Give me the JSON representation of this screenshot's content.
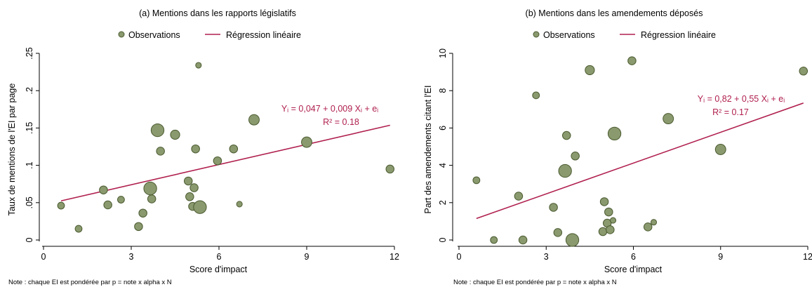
{
  "chart_data": [
    {
      "type": "scatter",
      "title": "(a) Mentions dans les rapports législatifs",
      "xlabel": "Score d'impact",
      "ylabel": "Taux de mentions de l'EI par page",
      "xlim": [
        0,
        12
      ],
      "ylim": [
        0,
        0.25
      ],
      "xticks": [
        0,
        3,
        6,
        9,
        12
      ],
      "xtick_labels": [
        "0",
        "3",
        "6",
        "9",
        "12"
      ],
      "yticks": [
        0,
        0.05,
        0.1,
        0.15,
        0.2,
        0.25
      ],
      "ytick_labels": [
        "0",
        ".05",
        ".1",
        ".15",
        ".2",
        ".25"
      ],
      "legend_position": "top-center",
      "legend": {
        "observations": "Observations",
        "regression": "Régression linéaire"
      },
      "equation": "Yᵢ = 0,047 + 0,009 Xᵢ + eᵢ",
      "r2": "R² = 0.18",
      "note": "Note : chaque EI est pondérée par p = note x alpha x N",
      "grid": false,
      "regression": {
        "intercept": 0.047,
        "slope": 0.009,
        "x_range": [
          0.6,
          11.85
        ]
      },
      "points": [
        {
          "x": 0.6,
          "y": 0.046,
          "w": 2
        },
        {
          "x": 1.2,
          "y": 0.015,
          "w": 2
        },
        {
          "x": 2.05,
          "y": 0.067,
          "w": 3
        },
        {
          "x": 2.2,
          "y": 0.047,
          "w": 3
        },
        {
          "x": 2.65,
          "y": 0.054,
          "w": 2
        },
        {
          "x": 3.25,
          "y": 0.018,
          "w": 3
        },
        {
          "x": 3.4,
          "y": 0.036,
          "w": 3
        },
        {
          "x": 3.65,
          "y": 0.069,
          "w": 7
        },
        {
          "x": 3.7,
          "y": 0.055,
          "w": 3
        },
        {
          "x": 3.9,
          "y": 0.147,
          "w": 7
        },
        {
          "x": 4.0,
          "y": 0.119,
          "w": 3
        },
        {
          "x": 4.5,
          "y": 0.141,
          "w": 4
        },
        {
          "x": 4.95,
          "y": 0.079,
          "w": 3
        },
        {
          "x": 5.0,
          "y": 0.058,
          "w": 3
        },
        {
          "x": 5.1,
          "y": 0.045,
          "w": 3
        },
        {
          "x": 5.15,
          "y": 0.07,
          "w": 3
        },
        {
          "x": 5.2,
          "y": 0.122,
          "w": 3
        },
        {
          "x": 5.3,
          "y": 0.234,
          "w": 1
        },
        {
          "x": 5.35,
          "y": 0.044,
          "w": 7
        },
        {
          "x": 5.95,
          "y": 0.106,
          "w": 3
        },
        {
          "x": 6.5,
          "y": 0.122,
          "w": 3
        },
        {
          "x": 6.7,
          "y": 0.048,
          "w": 1
        },
        {
          "x": 7.2,
          "y": 0.161,
          "w": 5
        },
        {
          "x": 9.0,
          "y": 0.131,
          "w": 5
        },
        {
          "x": 11.85,
          "y": 0.095,
          "w": 3
        }
      ]
    },
    {
      "type": "scatter",
      "title": "(b) Mentions dans les amendements déposés",
      "xlabel": "Score d'impact",
      "ylabel": "Part des amendements citant l'EI",
      "xlim": [
        0,
        12
      ],
      "ylim": [
        0,
        10
      ],
      "xticks": [
        0,
        3,
        6,
        9,
        12
      ],
      "xtick_labels": [
        "0",
        "3",
        "6",
        "9",
        "12"
      ],
      "yticks": [
        0,
        2,
        4,
        6,
        8,
        10
      ],
      "ytick_labels": [
        "0",
        "2",
        "4",
        "6",
        "8",
        "10"
      ],
      "legend_position": "top-center",
      "legend": {
        "observations": "Observations",
        "regression": "Régression linéaire"
      },
      "equation": "Yᵢ = 0,82 + 0,55 Xᵢ + eᵢ",
      "r2": "R² = 0.17",
      "note": "Note : chaque EI est pondérée par p = note x alpha x N",
      "grid": false,
      "regression": {
        "intercept": 0.82,
        "slope": 0.55,
        "x_range": [
          0.6,
          11.85
        ]
      },
      "points": [
        {
          "x": 0.6,
          "y": 3.2,
          "w": 2
        },
        {
          "x": 1.2,
          "y": 0.0,
          "w": 2
        },
        {
          "x": 2.05,
          "y": 2.35,
          "w": 3
        },
        {
          "x": 2.2,
          "y": 0.0,
          "w": 3
        },
        {
          "x": 2.65,
          "y": 7.75,
          "w": 2
        },
        {
          "x": 3.25,
          "y": 1.75,
          "w": 3
        },
        {
          "x": 3.4,
          "y": 0.4,
          "w": 3
        },
        {
          "x": 3.65,
          "y": 3.7,
          "w": 7
        },
        {
          "x": 3.7,
          "y": 5.6,
          "w": 3
        },
        {
          "x": 3.9,
          "y": 0.0,
          "w": 7
        },
        {
          "x": 4.0,
          "y": 4.5,
          "w": 3
        },
        {
          "x": 4.5,
          "y": 9.1,
          "w": 4
        },
        {
          "x": 4.95,
          "y": 0.45,
          "w": 3
        },
        {
          "x": 5.0,
          "y": 2.05,
          "w": 3
        },
        {
          "x": 5.1,
          "y": 0.9,
          "w": 3
        },
        {
          "x": 5.15,
          "y": 1.5,
          "w": 3
        },
        {
          "x": 5.2,
          "y": 0.55,
          "w": 3
        },
        {
          "x": 5.3,
          "y": 1.05,
          "w": 1
        },
        {
          "x": 5.35,
          "y": 5.7,
          "w": 7
        },
        {
          "x": 5.95,
          "y": 9.6,
          "w": 3
        },
        {
          "x": 6.5,
          "y": 0.7,
          "w": 3
        },
        {
          "x": 6.7,
          "y": 0.95,
          "w": 1
        },
        {
          "x": 7.2,
          "y": 6.5,
          "w": 5
        },
        {
          "x": 9.0,
          "y": 4.85,
          "w": 5
        },
        {
          "x": 11.85,
          "y": 9.05,
          "w": 3
        }
      ]
    }
  ],
  "colors": {
    "marker_fill": "#8A9A6E",
    "marker_stroke": "#4A5A30",
    "regression_line": "#B0204E",
    "axis": "#000000",
    "text": "#000000"
  }
}
